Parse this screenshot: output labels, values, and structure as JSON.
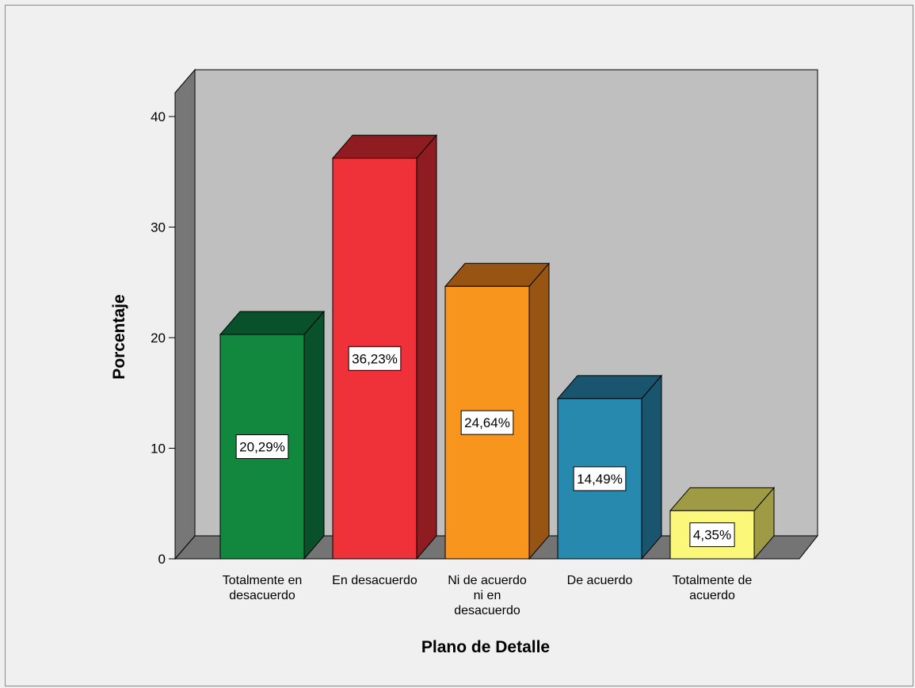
{
  "chart_data": {
    "type": "bar",
    "style": "3d",
    "xlabel": "Plano de Detalle",
    "ylabel": "Porcentaje",
    "ylim": [
      0,
      40
    ],
    "yticks": [
      "0",
      "10",
      "20",
      "30",
      "40"
    ],
    "categories": [
      [
        "Totalmente en",
        "desacuerdo"
      ],
      [
        "En desacuerdo"
      ],
      [
        "Ni de acuerdo",
        "ni en",
        "desacuerdo"
      ],
      [
        "De acuerdo"
      ],
      [
        "Totalmente de",
        "acuerdo"
      ]
    ],
    "values": [
      20.29,
      36.23,
      24.64,
      14.49,
      4.35
    ],
    "data_labels": [
      "20,29%",
      "36,23%",
      "24,64%",
      "14,49%",
      "4,35%"
    ],
    "colors": {
      "bars": [
        "#12883f",
        "#ef3139",
        "#f7951c",
        "#2689ad",
        "#fbf77b"
      ],
      "bar_sides": [
        "#08512a",
        "#8f1c20",
        "#985412",
        "#1a5570",
        "#9f9b45"
      ],
      "wall_back": "#bfbfbf",
      "wall_side": "#777777",
      "floor": "#747474",
      "background": "#f0f0f0"
    },
    "grid": false,
    "legend": "none"
  }
}
